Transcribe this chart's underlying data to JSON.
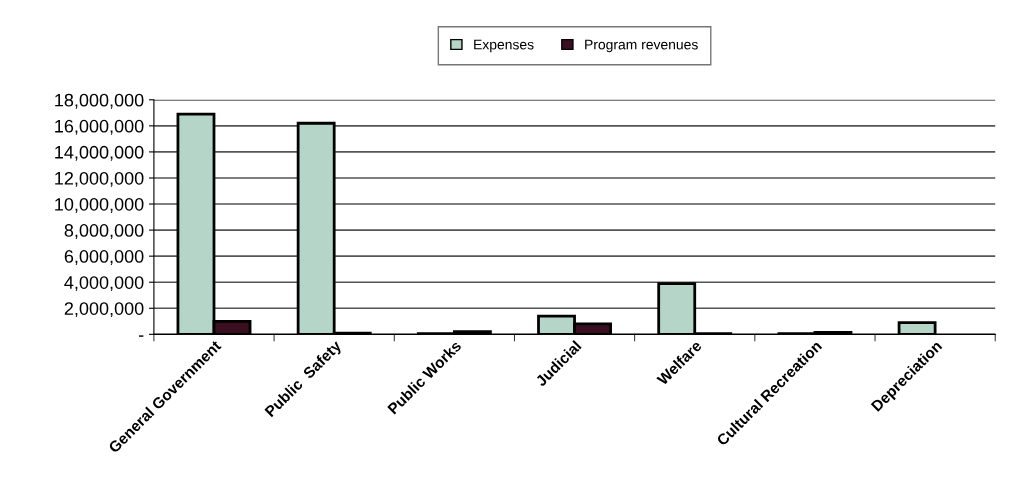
{
  "chart_data": {
    "type": "bar",
    "categories": [
      "General Government",
      "Public  Safety",
      "Public Works",
      "Judicial",
      "Welfare",
      "Cultural Recreation",
      "Depreciation"
    ],
    "series": [
      {
        "name": "Expenses",
        "color": "#b5d5c8",
        "values": [
          16900000,
          16200000,
          50000,
          1400000,
          3900000,
          50000,
          900000
        ]
      },
      {
        "name": "Program revenues",
        "color": "#3a1020",
        "values": [
          1000000,
          100000,
          200000,
          800000,
          50000,
          150000,
          null
        ]
      }
    ],
    "ylim": [
      0,
      18000000
    ],
    "yticks": [
      {
        "value": 0,
        "label": "-"
      },
      {
        "value": 2000000,
        "label": "2,000,000"
      },
      {
        "value": 4000000,
        "label": "4,000,000"
      },
      {
        "value": 6000000,
        "label": "6,000,000"
      },
      {
        "value": 8000000,
        "label": "8,000,000"
      },
      {
        "value": 10000000,
        "label": "10,000,000"
      },
      {
        "value": 12000000,
        "label": "12,000,000"
      },
      {
        "value": 14000000,
        "label": "14,000,000"
      },
      {
        "value": 16000000,
        "label": "16,000,000"
      },
      {
        "value": 18000000,
        "label": "18,000,000"
      }
    ],
    "grid": "y",
    "legend": "top"
  }
}
